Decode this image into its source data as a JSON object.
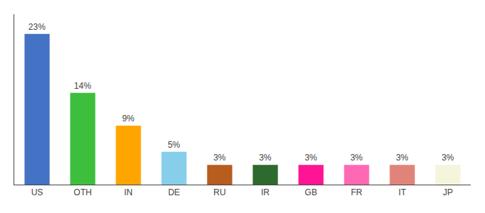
{
  "chart_data": {
    "type": "bar",
    "categories": [
      "US",
      "OTH",
      "IN",
      "DE",
      "RU",
      "IR",
      "GB",
      "FR",
      "IT",
      "JP"
    ],
    "values": [
      23,
      14,
      9,
      5,
      3,
      3,
      3,
      3,
      3,
      3
    ],
    "value_labels": [
      "23%",
      "14%",
      "9%",
      "5%",
      "3%",
      "3%",
      "3%",
      "3%",
      "3%",
      "3%"
    ],
    "colors": [
      "#4472c4",
      "#3dbf3d",
      "#ffa500",
      "#87ceeb",
      "#b85c20",
      "#2d6a2d",
      "#ff1493",
      "#ff69b4",
      "#e0847a",
      "#f5f5dc"
    ],
    "ylim": [
      0,
      26
    ],
    "data_labels": true,
    "tick_labels": "x",
    "grid": false
  }
}
